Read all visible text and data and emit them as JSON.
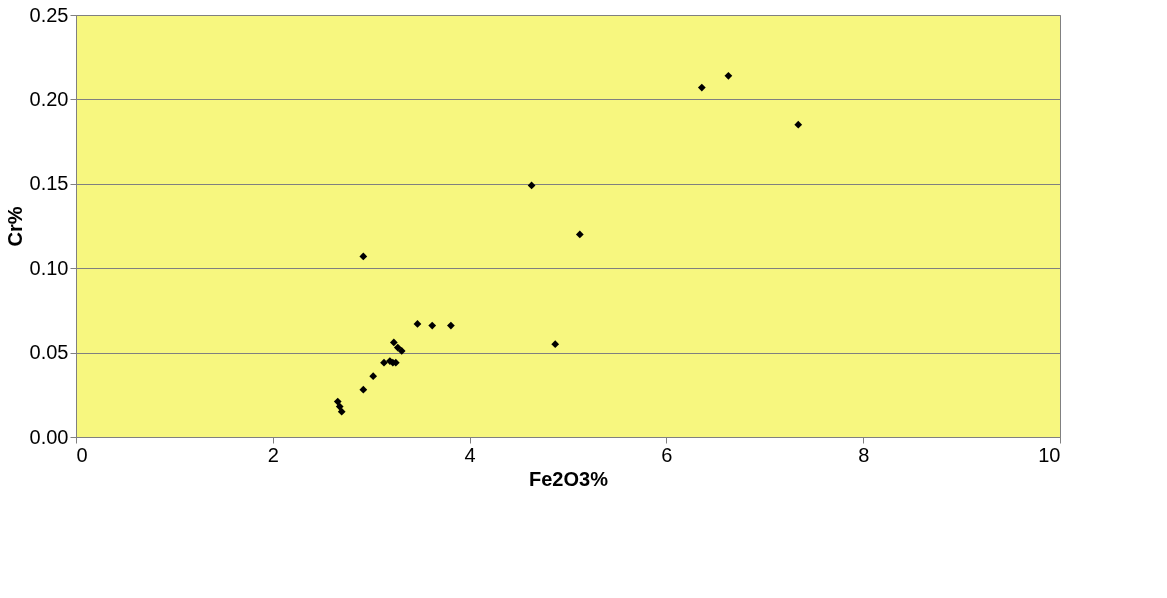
{
  "chart_data": {
    "type": "scatter",
    "xlabel": "Fe2O3%",
    "ylabel": "Cr%",
    "x": [
      2.92,
      2.66,
      2.68,
      2.7,
      2.92,
      3.02,
      3.13,
      3.19,
      3.22,
      3.25,
      3.23,
      3.27,
      3.31,
      3.47,
      3.62,
      3.81,
      4.63,
      5.12,
      4.87,
      6.36,
      6.63,
      7.34
    ],
    "series": [
      {
        "color": "#000000",
        "values": [
          0.107,
          0.021,
          0.018,
          0.015,
          0.028,
          0.036,
          0.044,
          0.045,
          0.044,
          0.044,
          0.056,
          0.053,
          0.051,
          0.067,
          0.066,
          0.066,
          0.149,
          0.12,
          0.055,
          0.207,
          0.214,
          0.185
        ]
      }
    ],
    "xlim": [
      0,
      10
    ],
    "xticks": [
      0,
      2,
      4,
      6,
      8,
      10
    ],
    "ylim": [
      0,
      0.25
    ],
    "yticks": [
      {
        "value": 0,
        "label": "0.00"
      },
      {
        "value": 0.05,
        "label": "0.05"
      },
      {
        "value": 0.1,
        "label": "0.10"
      },
      {
        "value": 0.15,
        "label": "0.15"
      },
      {
        "value": 0.2,
        "label": "0.20"
      },
      {
        "value": 0.25,
        "label": "0.25"
      }
    ],
    "grid": "y",
    "marker": "diamond",
    "legend": false
  }
}
